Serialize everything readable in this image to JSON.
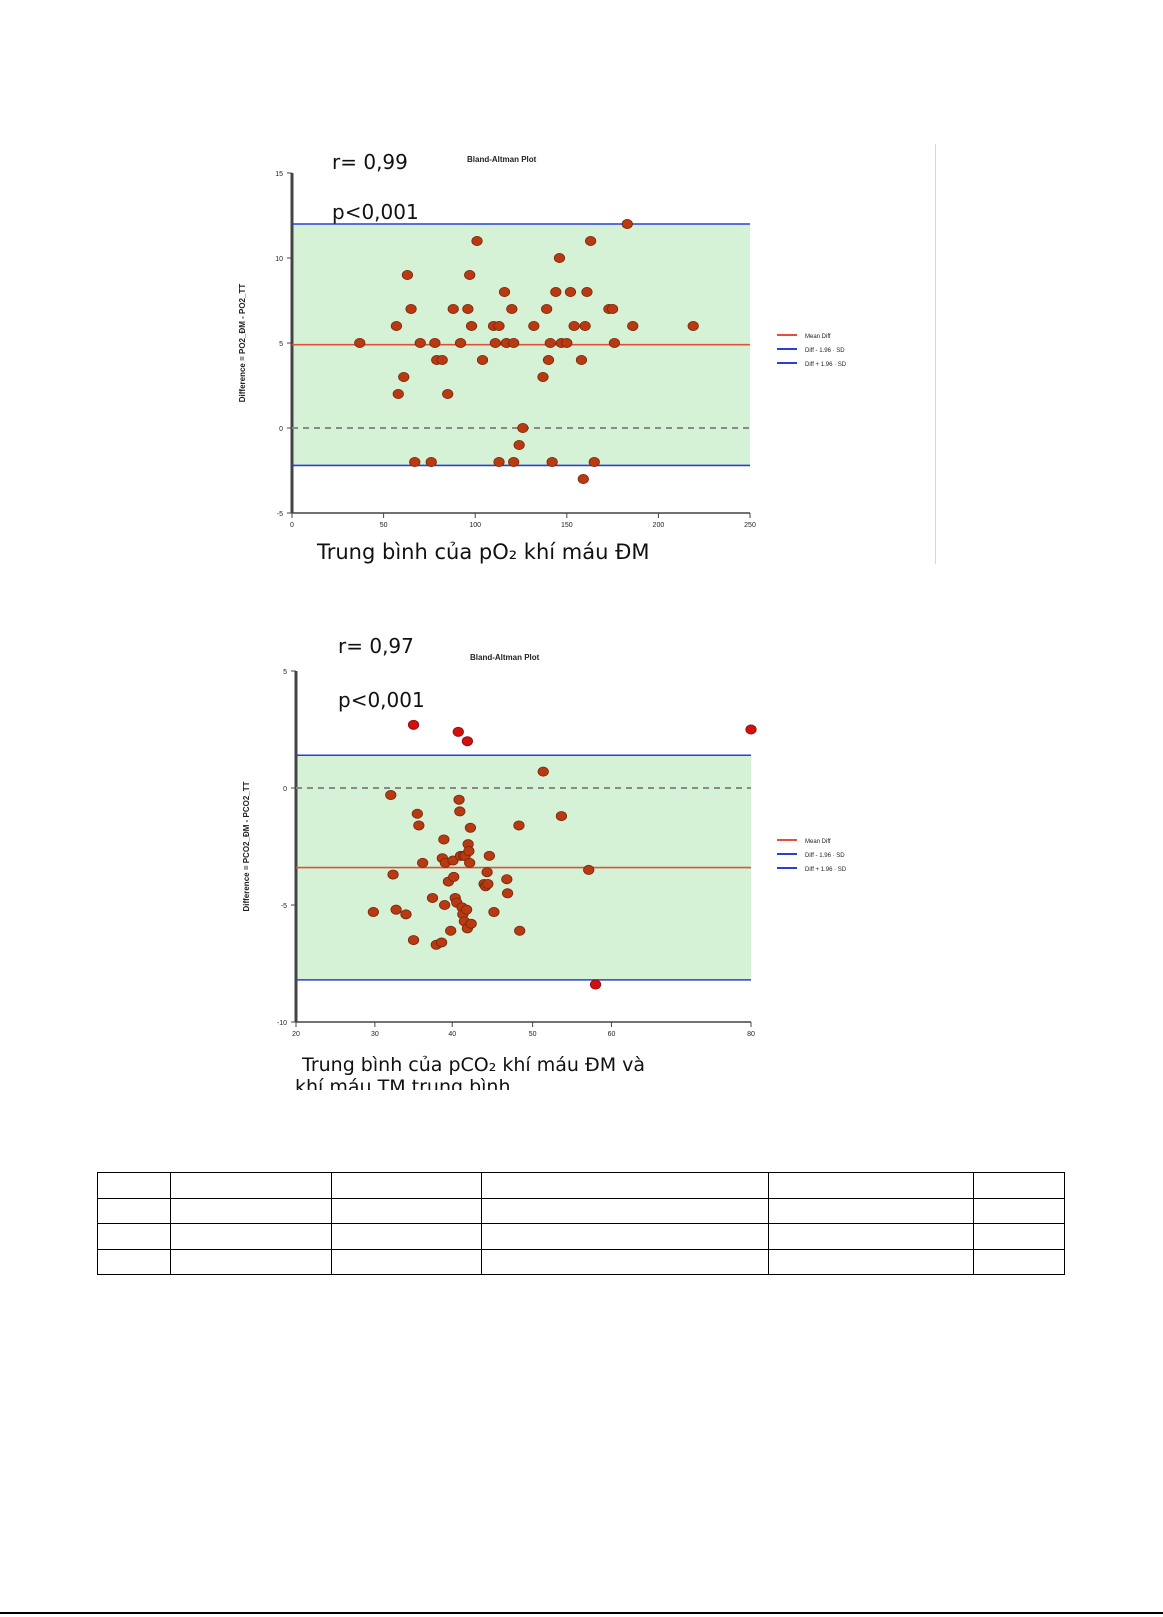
{
  "chart_data": [
    {
      "type": "scatter",
      "title": "Bland-Altman Plot",
      "annotations": [
        "r= 0,99",
        "p<0,001"
      ],
      "ylabel": "Difference = PO2_ĐM - PO2_TT",
      "xlabel": "Trung bình của pO₂ khí máu ĐM",
      "xlim": [
        0,
        250
      ],
      "ylim": [
        -5,
        15
      ],
      "xticks": [
        "0",
        "50",
        "100",
        "150",
        "200",
        "250"
      ],
      "yticks": [
        "-5",
        "0",
        "5",
        "10",
        "15"
      ],
      "mean_diff": 4.9,
      "lower_loa": -2.2,
      "upper_loa": 12.0,
      "legend": [
        "Mean Diff",
        "Diff - 1.96 · SD",
        "Diff + 1.96 · SD"
      ],
      "legend_position": "right",
      "colors": {
        "mean": "#e0503a",
        "loa": "#2b3fd6",
        "shade": "#d6f2d6",
        "point": "#b83a12",
        "point_edge": "#7a2408",
        "outlier": "#d40f0f"
      },
      "points": [
        [
          37,
          5
        ],
        [
          57,
          6
        ],
        [
          58,
          2
        ],
        [
          61,
          3
        ],
        [
          63,
          9
        ],
        [
          65,
          7
        ],
        [
          67,
          -2
        ],
        [
          70,
          5
        ],
        [
          76,
          -2
        ],
        [
          78,
          5
        ],
        [
          79,
          4
        ],
        [
          82,
          4
        ],
        [
          85,
          2
        ],
        [
          88,
          7
        ],
        [
          92,
          5
        ],
        [
          96,
          7
        ],
        [
          97,
          9
        ],
        [
          98,
          6
        ],
        [
          101,
          11
        ],
        [
          104,
          4
        ],
        [
          110,
          6
        ],
        [
          111,
          5
        ],
        [
          113,
          6
        ],
        [
          113,
          -2
        ],
        [
          116,
          8
        ],
        [
          117,
          5
        ],
        [
          120,
          7
        ],
        [
          121,
          5
        ],
        [
          121,
          -2
        ],
        [
          124,
          -1
        ],
        [
          126,
          0
        ],
        [
          132,
          6
        ],
        [
          137,
          3
        ],
        [
          139,
          7
        ],
        [
          140,
          4
        ],
        [
          141,
          5
        ],
        [
          142,
          -2
        ],
        [
          144,
          8
        ],
        [
          146,
          10
        ],
        [
          147,
          5
        ],
        [
          150,
          5
        ],
        [
          152,
          8
        ],
        [
          154,
          6
        ],
        [
          158,
          4
        ],
        [
          159,
          -3
        ],
        [
          160,
          6
        ],
        [
          161,
          8
        ],
        [
          163,
          11
        ],
        [
          165,
          -2
        ],
        [
          173,
          7
        ],
        [
          175,
          7
        ],
        [
          176,
          5
        ],
        [
          183,
          12
        ],
        [
          186,
          6
        ],
        [
          219,
          6
        ]
      ]
    },
    {
      "type": "scatter",
      "title": "Bland-Altman Plot",
      "annotations": [
        "r= 0,97",
        "p<0,001"
      ],
      "ylabel": "Difference = PCO2_ĐM - PCO2_TT",
      "xlabel": "Trung bình của pCO₂ khí máu ĐM và",
      "xlim": [
        20,
        80
      ],
      "ylim": [
        -10,
        5
      ],
      "xticks": [
        "20",
        "30",
        "40",
        "50",
        "60",
        "80"
      ],
      "yticks": [
        "-10",
        "-5",
        "0",
        "5"
      ],
      "mean_diff": -3.4,
      "lower_loa": -8.2,
      "upper_loa": 1.4,
      "legend": [
        "Mean Diff",
        "Diff - 1.96 · SD",
        "Diff + 1.96 · SD"
      ],
      "legend_position": "right",
      "colors": {
        "mean": "#e0503a",
        "loa": "#2b3fd6",
        "shade": "#d6f2d6",
        "point": "#b83a12",
        "point_edge": "#7a2408",
        "outlier": "#d40f0f"
      },
      "points": [
        [
          30.2,
          -5.3
        ],
        [
          32.8,
          -3.7
        ],
        [
          32.5,
          -0.3
        ],
        [
          33.2,
          -5.2
        ],
        [
          34.5,
          -5.4
        ],
        [
          35.5,
          -6.5
        ],
        [
          36.0,
          -1.1
        ],
        [
          36.2,
          -1.6
        ],
        [
          36.7,
          -3.2
        ],
        [
          38.0,
          -4.7
        ],
        [
          38.5,
          -6.7
        ],
        [
          39.2,
          -6.6
        ],
        [
          39.3,
          -3.0
        ],
        [
          39.5,
          -2.2
        ],
        [
          39.6,
          -5.0
        ],
        [
          39.7,
          -3.2
        ],
        [
          40.1,
          -4.0
        ],
        [
          40.4,
          -6.1
        ],
        [
          40.7,
          -3.1
        ],
        [
          40.8,
          -3.8
        ],
        [
          41.0,
          -4.7
        ],
        [
          41.2,
          -4.9
        ],
        [
          41.5,
          -0.5
        ],
        [
          41.6,
          -1.0
        ],
        [
          41.7,
          -2.9
        ],
        [
          41.9,
          -5.1
        ],
        [
          42.0,
          -5.4
        ],
        [
          42.1,
          -2.9
        ],
        [
          42.2,
          -5.7
        ],
        [
          42.3,
          -2.9
        ],
        [
          42.5,
          -5.2
        ],
        [
          42.6,
          -6.0
        ],
        [
          42.7,
          -2.4
        ],
        [
          42.8,
          -2.7
        ],
        [
          42.9,
          -3.2
        ],
        [
          43.0,
          -1.7
        ],
        [
          43.1,
          -5.8
        ],
        [
          44.8,
          -4.1
        ],
        [
          45.0,
          -4.2
        ],
        [
          45.2,
          -3.6
        ],
        [
          45.3,
          -4.1
        ],
        [
          45.5,
          -2.9
        ],
        [
          46.1,
          -5.3
        ],
        [
          47.8,
          -3.9
        ],
        [
          47.9,
          -4.5
        ],
        [
          49.4,
          -1.6
        ],
        [
          49.5,
          -6.1
        ],
        [
          52.6,
          0.7
        ],
        [
          55.0,
          -1.2
        ],
        [
          58.6,
          -3.5
        ]
      ],
      "outliers": [
        [
          35.5,
          2.7
        ],
        [
          41.4,
          2.4
        ],
        [
          42.6,
          2.0
        ],
        [
          59.5,
          -8.4
        ],
        [
          80,
          2.5
        ]
      ]
    }
  ],
  "captions": {
    "second_cut": "khí máu TM trung bình"
  },
  "table": {
    "rows": [
      [
        "",
        "",
        "",
        "",
        "",
        ""
      ],
      [
        "",
        "",
        "",
        "",
        "",
        ""
      ],
      [
        "",
        "",
        "",
        "",
        "",
        ""
      ],
      [
        "",
        "",
        "",
        "",
        "",
        ""
      ]
    ]
  }
}
